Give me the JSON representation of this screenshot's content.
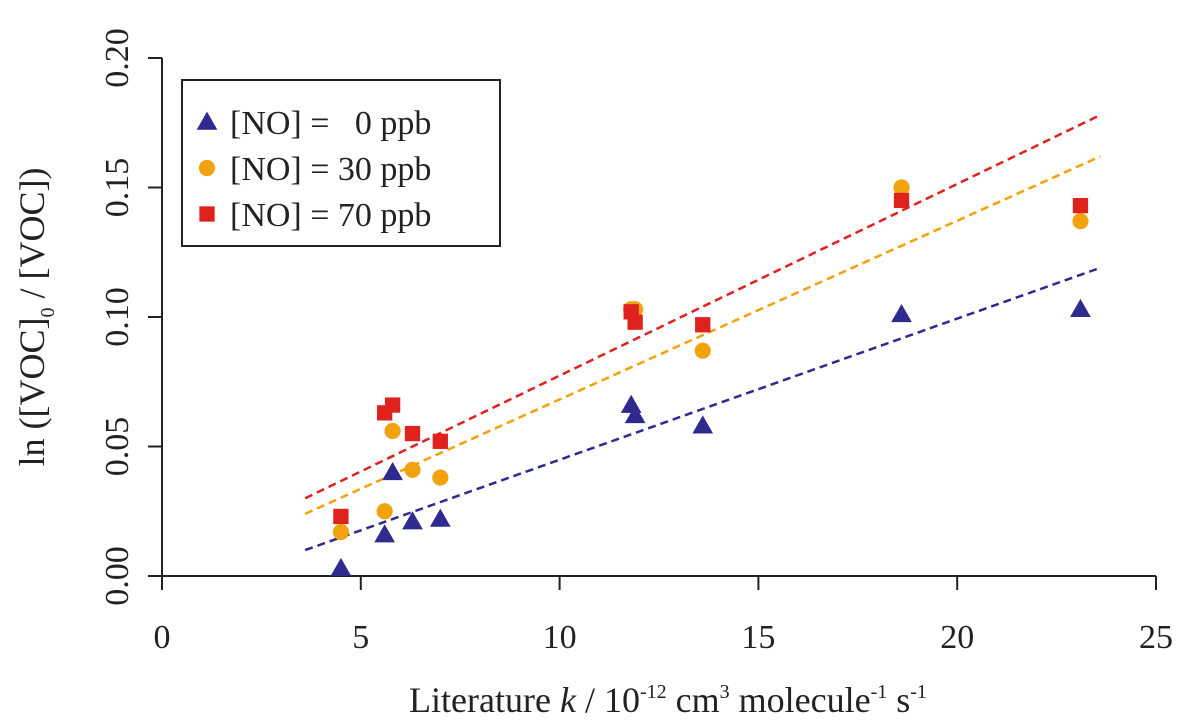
{
  "chart_data": {
    "type": "scatter",
    "x": [
      4.5,
      5.6,
      5.8,
      6.3,
      7.0,
      11.8,
      11.9,
      13.6,
      18.6,
      23.1
    ],
    "series": [
      {
        "name": "[NO] =   0 ppb",
        "marker": "triangle",
        "color": "#2e2a8e",
        "values": [
          0.003,
          0.016,
          0.04,
          0.021,
          0.022,
          0.066,
          0.062,
          0.058,
          0.101,
          0.103
        ],
        "fit": {
          "x": [
            3.6,
            23.6
          ],
          "y": [
            0.01,
            0.119
          ]
        }
      },
      {
        "name": "[NO] = 30 ppb",
        "marker": "circle",
        "color": "#f2a20c",
        "values": [
          0.017,
          0.025,
          0.056,
          0.041,
          0.038,
          0.103,
          0.103,
          0.087,
          0.15,
          0.137
        ],
        "fit": {
          "x": [
            3.6,
            23.6
          ],
          "y": [
            0.024,
            0.162
          ]
        }
      },
      {
        "name": "[NO] = 70 ppb",
        "marker": "square",
        "color": "#e0221f",
        "points": [
          [
            4.5,
            0.023
          ],
          [
            5.6,
            0.063
          ],
          [
            5.8,
            0.066
          ],
          [
            6.3,
            0.055
          ],
          [
            7.0,
            0.052
          ],
          [
            11.8,
            0.102
          ],
          [
            11.9,
            0.098
          ],
          [
            13.6,
            0.097
          ],
          [
            18.6,
            0.145
          ],
          [
            23.1,
            0.143
          ]
        ],
        "fit": {
          "x": [
            3.6,
            23.6
          ],
          "y": [
            0.03,
            0.178
          ]
        }
      }
    ],
    "xlabel": {
      "text1": "Literature ",
      "k": "k",
      "text2": " / 10",
      "exp1": "-12",
      "text3": " cm",
      "exp2": "3",
      "text4": " molecule",
      "exp3": "-1",
      "text5": " s",
      "exp4": "-1"
    },
    "ylabel": {
      "text1": "ln ([VOC]",
      "sub": "0",
      "text2": " / [VOC])"
    },
    "xlim": [
      0,
      25
    ],
    "ylim": [
      0,
      0.2
    ],
    "xticks": [
      "0",
      "5",
      "10",
      "15",
      "20",
      "25"
    ],
    "yticks": [
      "0.00",
      "0.05",
      "0.10",
      "0.15",
      "0.20"
    ],
    "grid": false,
    "legend_position": "top-left"
  }
}
